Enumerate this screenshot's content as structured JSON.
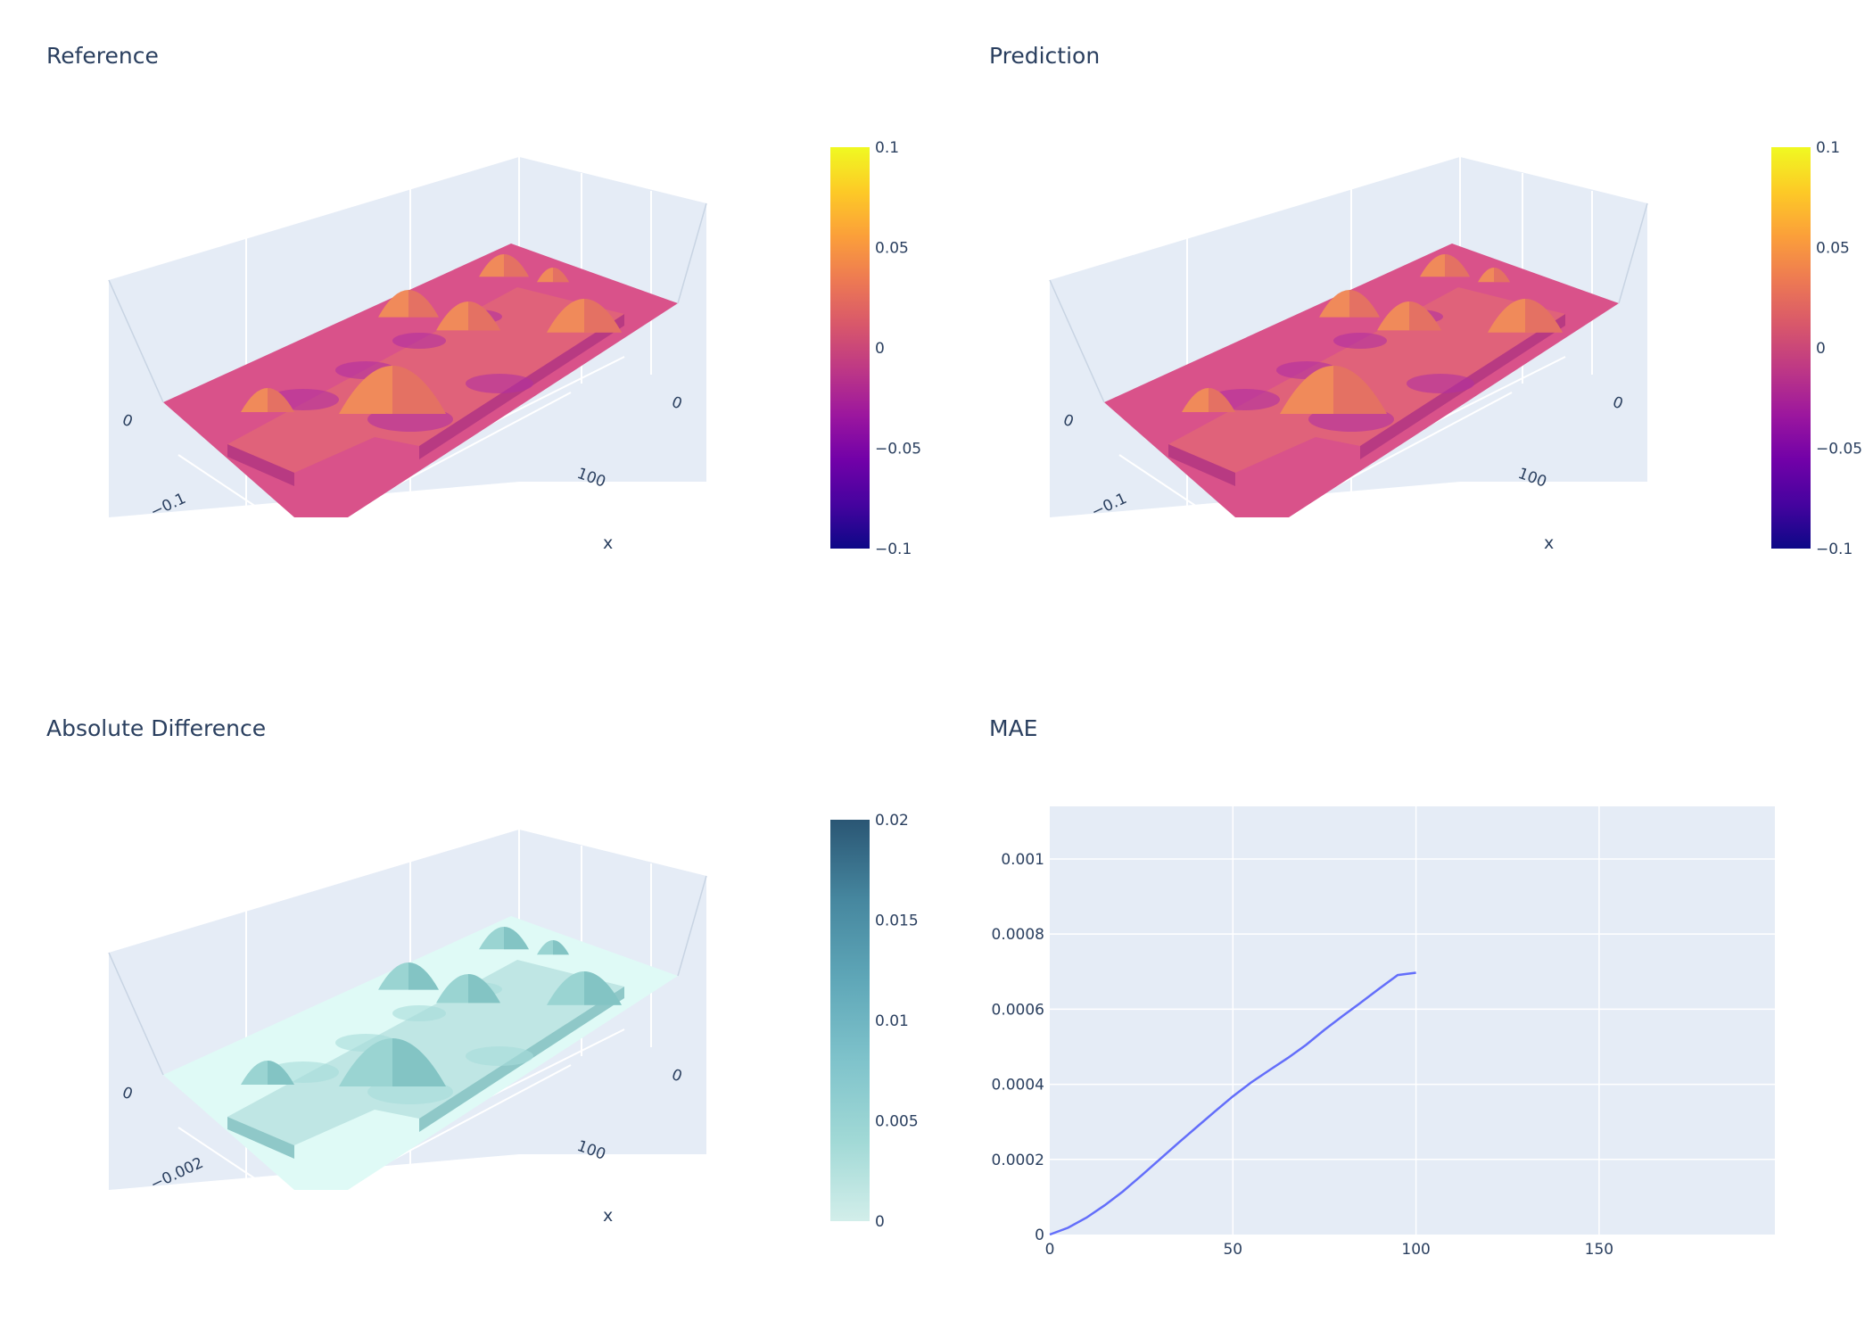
{
  "titles": {
    "reference": "Reference",
    "prediction": "Prediction",
    "difference": "Absolute Difference",
    "mae": "MAE"
  },
  "colors": {
    "plasma": [
      "#0d0887",
      "#46039f",
      "#7201a8",
      "#9c179e",
      "#bd3786",
      "#d8576b",
      "#ed7953",
      "#fb9f3a",
      "#fdca26",
      "#f0f921"
    ],
    "teal_scale": [
      "#d2eeea",
      "#a1d9d6",
      "#7fc3cb",
      "#5fa7b8",
      "#46879f",
      "#2a5674"
    ],
    "plot_bg": "#e5ecf6",
    "grid": "#ffffff",
    "mae_line": "#636efa",
    "surface_flat": "#d9528a",
    "surface_diff_flat": "#dffaf6"
  },
  "colorbars": {
    "reference": {
      "min": -0.1,
      "max": 0.1,
      "ticks": [
        "0.1",
        "0.05",
        "0",
        "−0.05",
        "−0.1"
      ]
    },
    "prediction": {
      "min": -0.1,
      "max": 0.1,
      "ticks": [
        "0.1",
        "0.05",
        "0",
        "−0.05",
        "−0.1"
      ]
    },
    "difference": {
      "min": 0,
      "max": 0.02,
      "ticks": [
        "0.02",
        "0.015",
        "0.01",
        "0.005",
        "0"
      ]
    }
  },
  "scene_labels": {
    "reference": {
      "y_tick": "0",
      "z_tick": "−0.1",
      "x_tick_0": "0",
      "x_tick_100": "100",
      "x_title": "x"
    },
    "prediction": {
      "y_tick": "0",
      "z_tick": "−0.1",
      "x_tick_0": "0",
      "x_tick_100": "100",
      "x_title": "x"
    },
    "difference": {
      "y_tick": "0",
      "z_tick": "−0.002",
      "x_tick_0": "0",
      "x_tick_100": "100",
      "x_title": "x"
    }
  },
  "chart_data": [
    {
      "type": "surface",
      "title": "Reference",
      "colorscale": "plasma",
      "cmin": -0.1,
      "cmax": 0.1,
      "xlabel": "x"
    },
    {
      "type": "surface",
      "title": "Prediction",
      "colorscale": "plasma",
      "cmin": -0.1,
      "cmax": 0.1,
      "xlabel": "x"
    },
    {
      "type": "surface",
      "title": "Absolute Difference",
      "colorscale": "teal",
      "cmin": 0,
      "cmax": 0.02,
      "xlabel": "x"
    },
    {
      "type": "line",
      "title": "MAE",
      "x": [
        0,
        5,
        10,
        15,
        20,
        25,
        30,
        35,
        40,
        45,
        50,
        55,
        60,
        65,
        70,
        75,
        80,
        85,
        90,
        95,
        100
      ],
      "y": [
        0,
        1.8e-05,
        4.5e-05,
        7.8e-05,
        0.000115,
        0.000157,
        0.0002,
        0.000243,
        0.000285,
        0.000327,
        0.000368,
        0.000405,
        0.000438,
        0.00047,
        0.000505,
        0.000545,
        0.000582,
        0.000618,
        0.000655,
        0.000691,
        0.000697
      ],
      "xlim": [
        0,
        198
      ],
      "ylim": [
        0,
        0.00114
      ],
      "xticks": [
        "0",
        "50",
        "100",
        "150"
      ],
      "xtick_values": [
        0,
        50,
        100,
        150
      ],
      "yticks": [
        "0",
        "0.0002",
        "0.0004",
        "0.0006",
        "0.0008",
        "0.001"
      ],
      "ytick_values": [
        0,
        0.0002,
        0.0004,
        0.0006,
        0.0008,
        0.001
      ],
      "grid": true
    }
  ]
}
